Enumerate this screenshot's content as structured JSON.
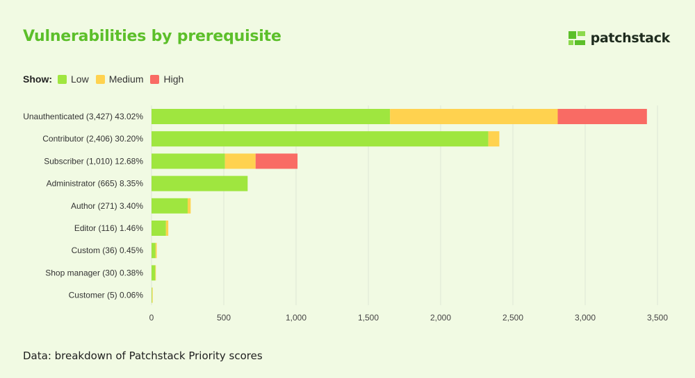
{
  "title": "Vulnerabilities by prerequisite",
  "brand": {
    "name": "patchstack",
    "icon": "patchstack-logo-icon"
  },
  "legend": {
    "show_label": "Show:",
    "items": [
      {
        "label": "Low",
        "color": "#9fe63f"
      },
      {
        "label": "Medium",
        "color": "#ffd24f"
      },
      {
        "label": "High",
        "color": "#f96b64"
      }
    ]
  },
  "footer": "Data: breakdown of Patchstack Priority scores",
  "colors": {
    "accent": "#5cbf2a",
    "background": "#f1fae3",
    "grid": "#dde5d4"
  },
  "chart_data": {
    "type": "bar",
    "orientation": "horizontal",
    "stacked": true,
    "categories": [
      "Unauthenticated (3,427) 43.02%",
      "Contributor (2,406) 30.20%",
      "Subscriber (1,010) 12.68%",
      "Administrator (665) 8.35%",
      "Author (271) 3.40%",
      "Editor (116) 1.46%",
      "Custom (36) 0.45%",
      "Shop manager (30) 0.38%",
      "Customer (5) 0.06%"
    ],
    "series": [
      {
        "name": "Low",
        "color": "#9fe63f",
        "values": [
          1650,
          2330,
          508,
          665,
          250,
          100,
          28,
          26,
          4
        ]
      },
      {
        "name": "Medium",
        "color": "#ffd24f",
        "values": [
          1160,
          76,
          212,
          0,
          21,
          16,
          8,
          4,
          1
        ]
      },
      {
        "name": "High",
        "color": "#f96b64",
        "values": [
          617,
          0,
          290,
          0,
          0,
          0,
          0,
          0,
          0
        ]
      }
    ],
    "xticks": [
      "0",
      "500",
      "1,000",
      "1,500",
      "2,000",
      "2,500",
      "3,000",
      "3,500"
    ],
    "xtick_values": [
      0,
      500,
      1000,
      1500,
      2000,
      2500,
      3000,
      3500
    ],
    "xlim": [
      0,
      3500
    ],
    "grid": true,
    "legend_position": "top-left"
  }
}
